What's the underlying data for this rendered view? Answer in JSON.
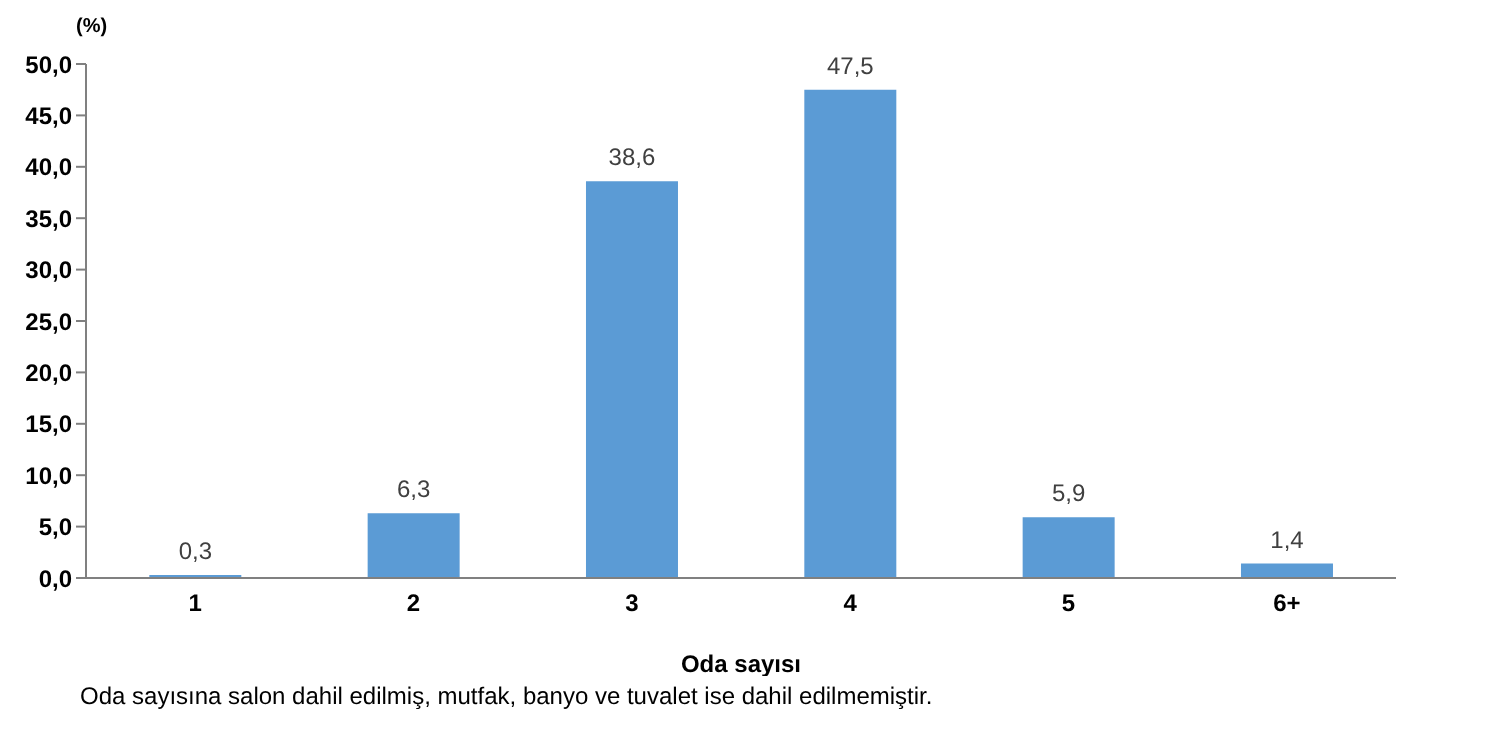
{
  "chart_data": {
    "type": "bar",
    "ylabel": "(%)",
    "xlabel": "Oda sayısı",
    "categories": [
      "1",
      "2",
      "3",
      "4",
      "5",
      "6+"
    ],
    "values": [
      0.3,
      6.3,
      38.6,
      47.5,
      5.9,
      1.4
    ],
    "value_labels": [
      "0,3",
      "6,3",
      "38,6",
      "47,5",
      "5,9",
      "1,4"
    ],
    "color": "#5b9bd5",
    "ylim": [
      0,
      50
    ],
    "yticks": [
      {
        "value": 0,
        "label": "0,0"
      },
      {
        "value": 5,
        "label": "5,0"
      },
      {
        "value": 10,
        "label": "10,0"
      },
      {
        "value": 15,
        "label": "15,0"
      },
      {
        "value": 20,
        "label": "20,0"
      },
      {
        "value": 25,
        "label": "25,0"
      },
      {
        "value": 30,
        "label": "30,0"
      },
      {
        "value": 35,
        "label": "35,0"
      },
      {
        "value": 40,
        "label": "40,0"
      },
      {
        "value": 45,
        "label": "45,0"
      },
      {
        "value": 50,
        "label": "50,0"
      }
    ],
    "grid": false,
    "legend": false,
    "annotations": [
      "Oda sayısına salon dahil edilmiş, mutfak, banyo ve tuvalet ise dahil edilmemiştir."
    ]
  }
}
